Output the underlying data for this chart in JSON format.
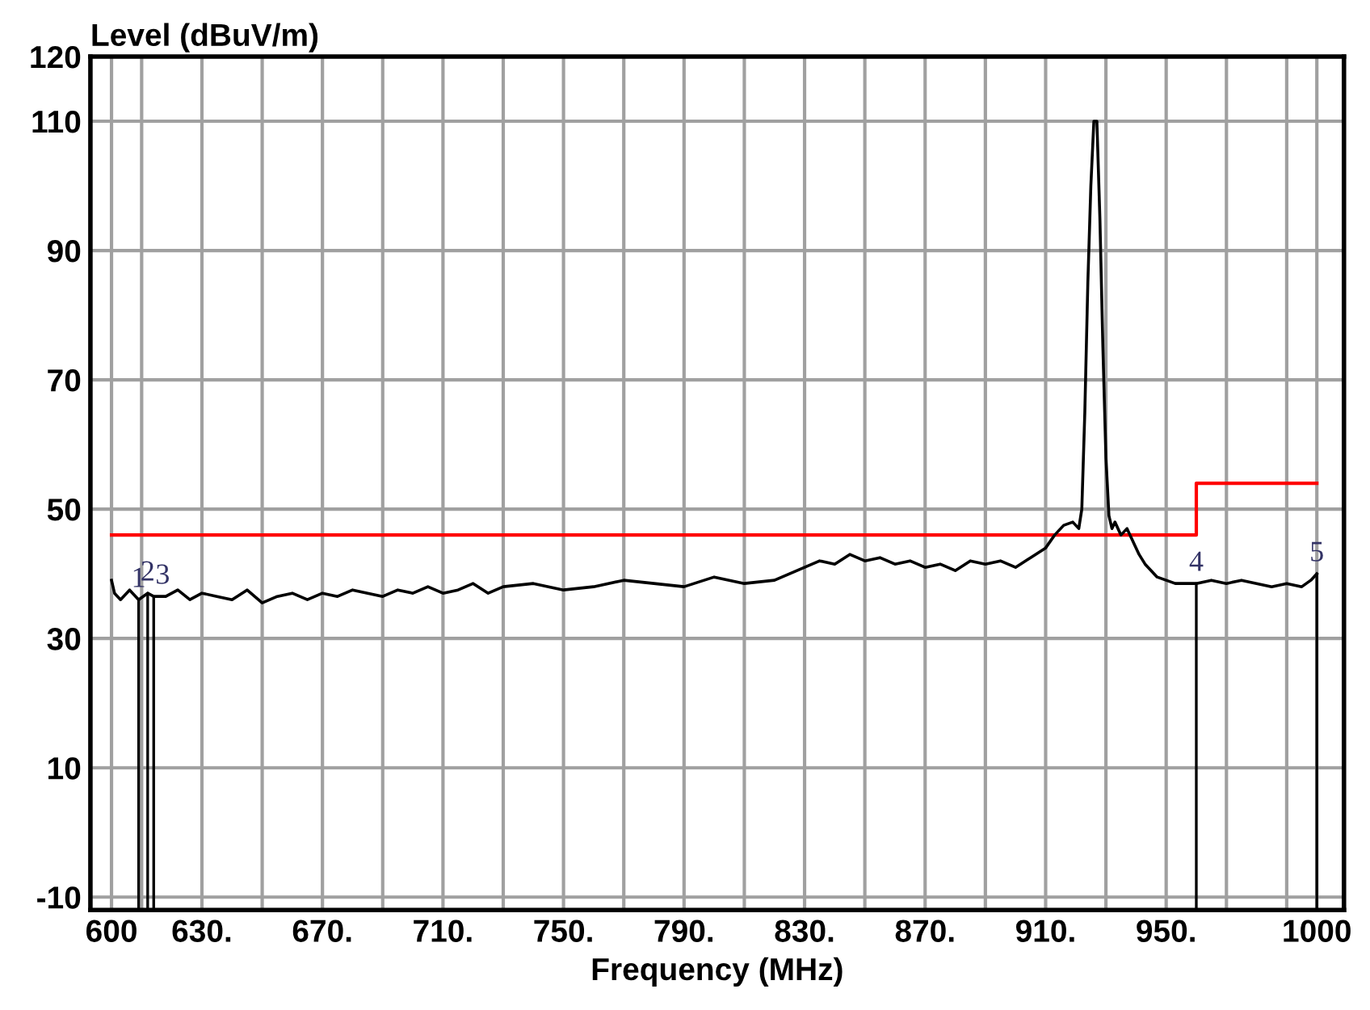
{
  "chart_data": {
    "type": "line",
    "xlabel": "Frequency (MHz)",
    "ylabel": "Level (dBuV/m)",
    "xlim": [
      593,
      1009
    ],
    "ylim": [
      -12,
      120
    ],
    "xticks": [
      600,
      {
        "value": 610,
        "label": null
      },
      {
        "value": 630,
        "label": "630."
      },
      {
        "value": 650,
        "label": null
      },
      {
        "value": 670,
        "label": "670."
      },
      {
        "value": 690,
        "label": null
      },
      {
        "value": 710,
        "label": "710."
      },
      {
        "value": 730,
        "label": null
      },
      {
        "value": 750,
        "label": "750."
      },
      {
        "value": 770,
        "label": null
      },
      {
        "value": 790,
        "label": "790."
      },
      {
        "value": 810,
        "label": null
      },
      {
        "value": 830,
        "label": "830."
      },
      {
        "value": 850,
        "label": null
      },
      {
        "value": 870,
        "label": "870."
      },
      {
        "value": 890,
        "label": null
      },
      {
        "value": 910,
        "label": "910."
      },
      {
        "value": 930,
        "label": null
      },
      {
        "value": 950,
        "label": "950."
      },
      {
        "value": 970,
        "label": null
      },
      {
        "value": 990,
        "label": null
      },
      1000
    ],
    "yticks": [
      -10,
      10,
      30,
      50,
      70,
      90,
      110,
      120
    ],
    "grid": true,
    "legend": false,
    "marker": "none",
    "line_style": "solid",
    "series": [
      {
        "color": "#000000",
        "x": [
          600,
          601,
          603,
          606,
          609,
          612,
          614,
          618,
          622,
          626,
          630,
          635,
          640,
          645,
          650,
          655,
          660,
          665,
          670,
          675,
          680,
          685,
          690,
          695,
          700,
          705,
          710,
          715,
          720,
          725,
          730,
          740,
          750,
          760,
          770,
          780,
          790,
          800,
          810,
          820,
          825,
          830,
          835,
          840,
          845,
          850,
          855,
          860,
          865,
          870,
          875,
          880,
          885,
          890,
          895,
          900,
          905,
          910,
          913,
          916,
          919,
          921,
          922,
          923,
          924,
          925,
          926,
          927,
          928,
          929,
          930,
          931,
          932,
          933,
          935,
          937,
          939,
          941,
          943,
          945,
          947,
          950,
          953,
          956,
          960,
          965,
          970,
          975,
          980,
          985,
          990,
          995,
          998,
          1000
        ],
        "values": [
          39,
          37,
          36,
          37.5,
          36,
          37,
          36.5,
          36.5,
          37.5,
          36,
          37,
          36.5,
          36,
          37.5,
          35.5,
          36.5,
          37,
          36,
          37,
          36.5,
          37.5,
          37,
          36.5,
          37.5,
          37,
          38,
          37,
          37.5,
          38.5,
          37,
          38,
          38.5,
          37.5,
          38,
          39,
          38.5,
          38,
          39.5,
          38.5,
          39,
          40,
          41,
          42,
          41.5,
          43,
          42,
          42.5,
          41.5,
          42,
          41,
          41.5,
          40.5,
          42,
          41.5,
          42,
          41,
          42.5,
          44,
          46,
          47.5,
          48,
          47,
          50,
          65,
          85,
          100,
          110,
          110,
          95,
          75,
          58,
          49,
          47,
          48,
          46,
          47,
          45,
          43,
          41.5,
          40.5,
          39.5,
          39,
          38.5,
          38.5,
          38.5,
          39,
          38.5,
          39,
          38.5,
          38,
          38.5,
          38,
          39,
          40
        ]
      },
      {
        "type": "step",
        "color": "#ff0000",
        "x": [
          600,
          960,
          1000
        ],
        "values": [
          46,
          54,
          54
        ]
      }
    ],
    "annotations": [
      {
        "text": "1",
        "x": 609,
        "y": 36
      },
      {
        "text": "2",
        "x": 612,
        "y": 37
      },
      {
        "text": "3",
        "x": 614,
        "y": 36.5
      },
      {
        "text": "4",
        "x": 960,
        "y": 38.5
      },
      {
        "text": "5",
        "x": 1000,
        "y": 40
      }
    ]
  }
}
